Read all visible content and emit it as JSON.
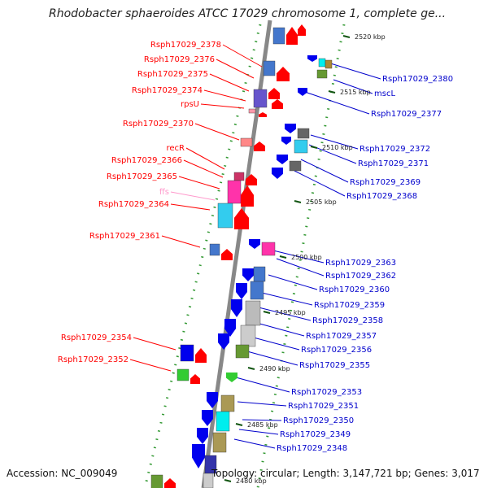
{
  "title": "Rhodobacter sphaeroides ATCC 17029 chromosome 1, complete ge...",
  "footer": {
    "accession": "Accession: NC_009049",
    "summary": "Topology: circular; Length: 3,147,721 bp; Genes: 3,017"
  },
  "ticks": [
    {
      "label": "2520 kbp",
      "pos": 2520
    },
    {
      "label": "2515 kbp",
      "pos": 2515
    },
    {
      "label": "2510 kbp",
      "pos": 2510
    },
    {
      "label": "2505 kbp",
      "pos": 2505
    },
    {
      "label": "2500 kbp",
      "pos": 2500
    },
    {
      "label": "2495 kbp",
      "pos": 2495
    },
    {
      "label": "2490 kbp",
      "pos": 2490
    },
    {
      "label": "2485 kbp",
      "pos": 2485
    },
    {
      "label": "2480 kbp",
      "pos": 2480
    }
  ],
  "genes_reverse": [
    {
      "name": "Rsph17029_2378",
      "color": "#ff0000"
    },
    {
      "name": "Rsph17029_2376",
      "color": "#ff0000"
    },
    {
      "name": "Rsph17029_2375",
      "color": "#ff0000"
    },
    {
      "name": "Rsph17029_2374",
      "color": "#ff0000"
    },
    {
      "name": "rpsU",
      "color": "#ff0000"
    },
    {
      "name": "Rsph17029_2370",
      "color": "#ff0000"
    },
    {
      "name": "recR",
      "color": "#ff0000"
    },
    {
      "name": "Rsph17029_2366",
      "color": "#ff0000"
    },
    {
      "name": "Rsph17029_2365",
      "color": "#ff0000"
    },
    {
      "name": "ffs",
      "color": "#ff99cc"
    },
    {
      "name": "Rsph17029_2364",
      "color": "#ff0000"
    },
    {
      "name": "Rsph17029_2361",
      "color": "#ff0000"
    },
    {
      "name": "Rsph17029_2354",
      "color": "#ff0000"
    },
    {
      "name": "Rsph17029_2352",
      "color": "#ff0000"
    }
  ],
  "genes_forward": [
    {
      "name": "Rsph17029_2380",
      "color": "#0000cc"
    },
    {
      "name": "mscL",
      "color": "#0000cc"
    },
    {
      "name": "Rsph17029_2377",
      "color": "#0000cc"
    },
    {
      "name": "Rsph17029_2372",
      "color": "#0000cc"
    },
    {
      "name": "Rsph17029_2371",
      "color": "#0000cc"
    },
    {
      "name": "Rsph17029_2369",
      "color": "#0000cc"
    },
    {
      "name": "Rsph17029_2368",
      "color": "#0000cc"
    },
    {
      "name": "Rsph17029_2363",
      "color": "#0000cc"
    },
    {
      "name": "Rsph17029_2362",
      "color": "#0000cc"
    },
    {
      "name": "Rsph17029_2360",
      "color": "#0000cc"
    },
    {
      "name": "Rsph17029_2359",
      "color": "#0000cc"
    },
    {
      "name": "Rsph17029_2358",
      "color": "#0000cc"
    },
    {
      "name": "Rsph17029_2357",
      "color": "#0000cc"
    },
    {
      "name": "Rsph17029_2356",
      "color": "#0000cc"
    },
    {
      "name": "Rsph17029_2355",
      "color": "#0000cc"
    },
    {
      "name": "Rsph17029_2353",
      "color": "#0000cc"
    },
    {
      "name": "Rsph17029_2351",
      "color": "#0000cc"
    },
    {
      "name": "Rsph17029_2350",
      "color": "#0000cc"
    },
    {
      "name": "Rsph17029_2349",
      "color": "#0000cc"
    },
    {
      "name": "Rsph17029_2348",
      "color": "#0000cc"
    }
  ]
}
